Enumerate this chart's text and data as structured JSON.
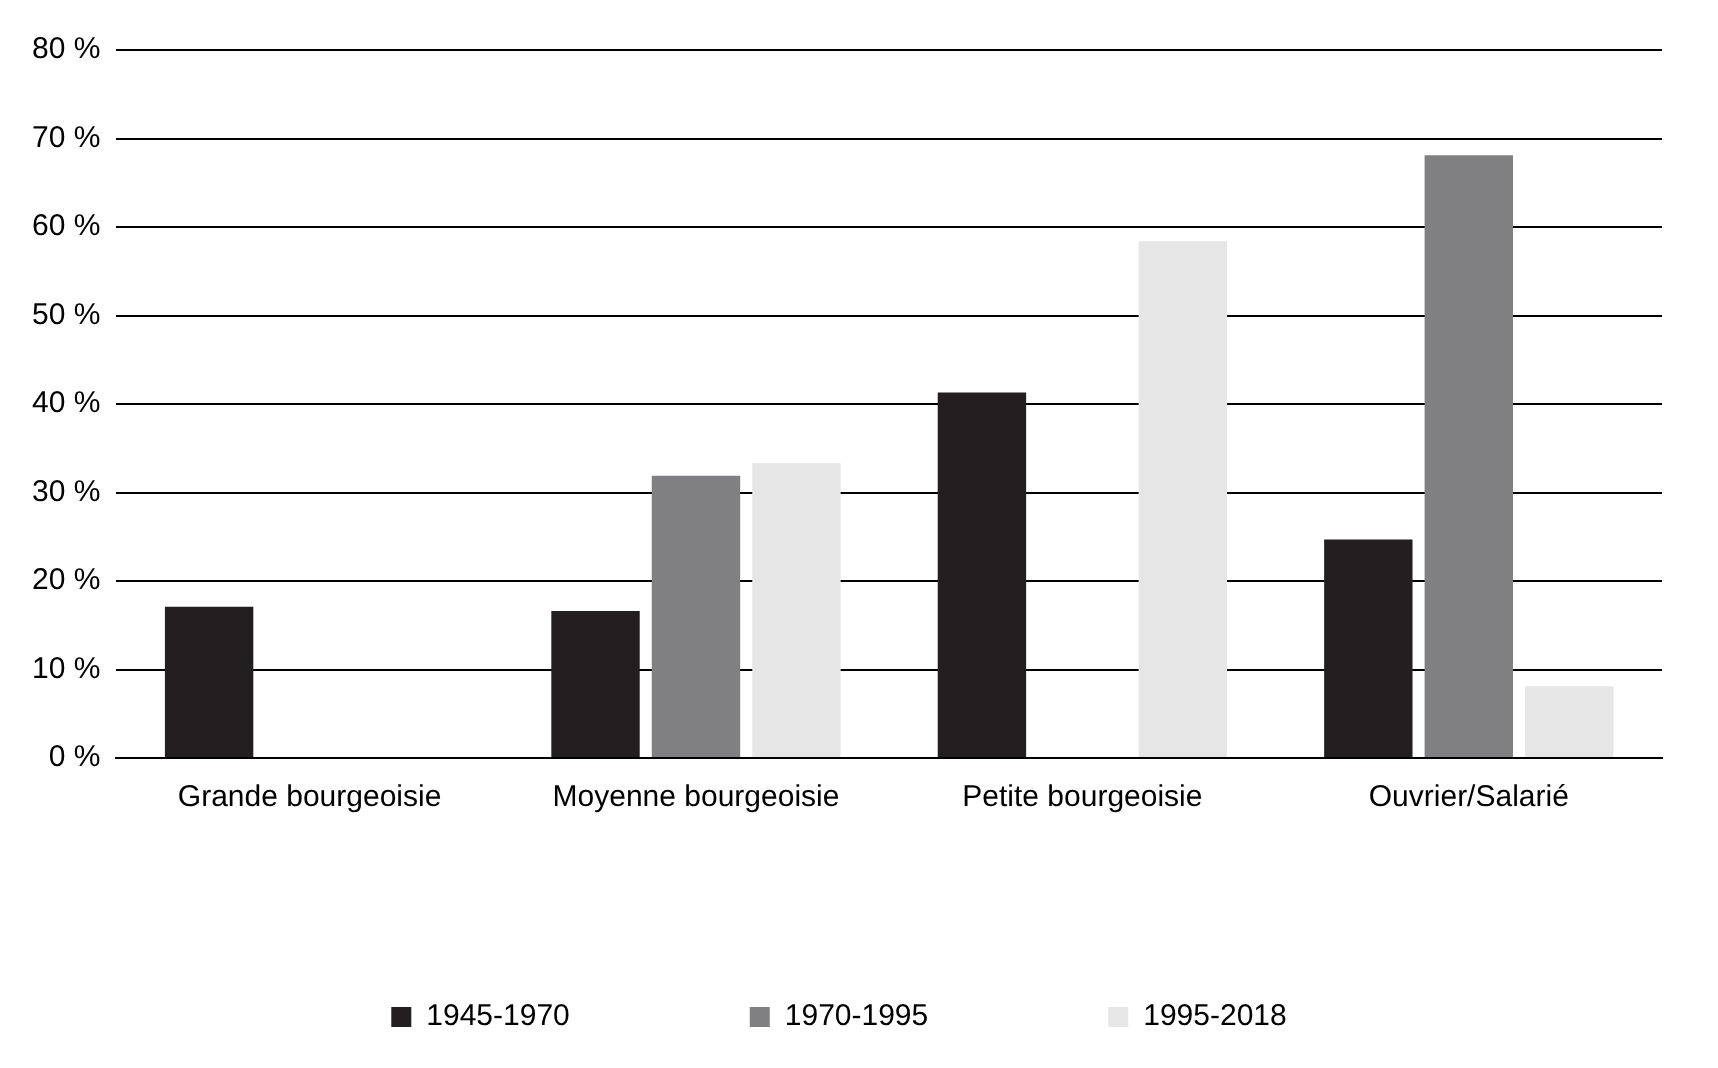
{
  "chart_data": {
    "type": "bar",
    "categories": [
      "Grande bourgeoisie",
      "Moyenne bourgeoisie",
      "Petite bourgeoisie",
      "Ouvrier/Salarié"
    ],
    "series": [
      {
        "name": "1945-1970",
        "color": "#231f20",
        "values": [
          17.1,
          16.6,
          41.3,
          24.7
        ]
      },
      {
        "name": "1970-1995",
        "color": "#808083",
        "values": [
          null,
          31.9,
          null,
          68.1
        ]
      },
      {
        "name": "1995-2018",
        "color": "#e6e6e7",
        "values": [
          null,
          33.3,
          58.4,
          8.1
        ]
      }
    ],
    "ylim": [
      0,
      80
    ],
    "yticks": [
      {
        "value": 0,
        "label": "0 %"
      },
      {
        "value": 10,
        "label": "10 %"
      },
      {
        "value": 20,
        "label": "20 %"
      },
      {
        "value": 30,
        "label": "30 %"
      },
      {
        "value": 40,
        "label": "40 %"
      },
      {
        "value": 50,
        "label": "50 %"
      },
      {
        "value": 60,
        "label": "60 %"
      },
      {
        "value": 70,
        "label": "70 %"
      },
      {
        "value": 80,
        "label": "80 %"
      }
    ],
    "grid": "y",
    "legend": "bottom"
  }
}
